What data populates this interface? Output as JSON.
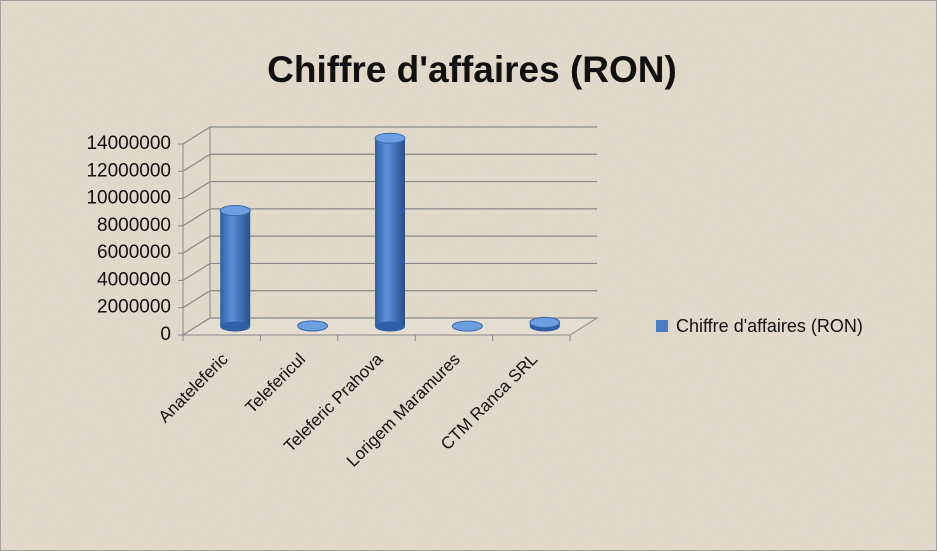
{
  "chart_data": {
    "type": "bar",
    "title": "Chiffre d'affaires (RON)",
    "categories": [
      "Anateleferic",
      "Telefericul",
      "Teleferic Prahova",
      "Lorigem Maramures",
      "CTM Ranca SRL"
    ],
    "series": [
      {
        "name": "Chiffre d'affaires (RON)",
        "color": "#4a7ec8",
        "values": [
          8500000,
          50000,
          13800000,
          30000,
          300000
        ]
      }
    ],
    "ylim": [
      0,
      14000000
    ],
    "yticks": [
      0,
      2000000,
      4000000,
      6000000,
      8000000,
      10000000,
      12000000,
      14000000
    ],
    "grid": true,
    "legend": "right"
  }
}
